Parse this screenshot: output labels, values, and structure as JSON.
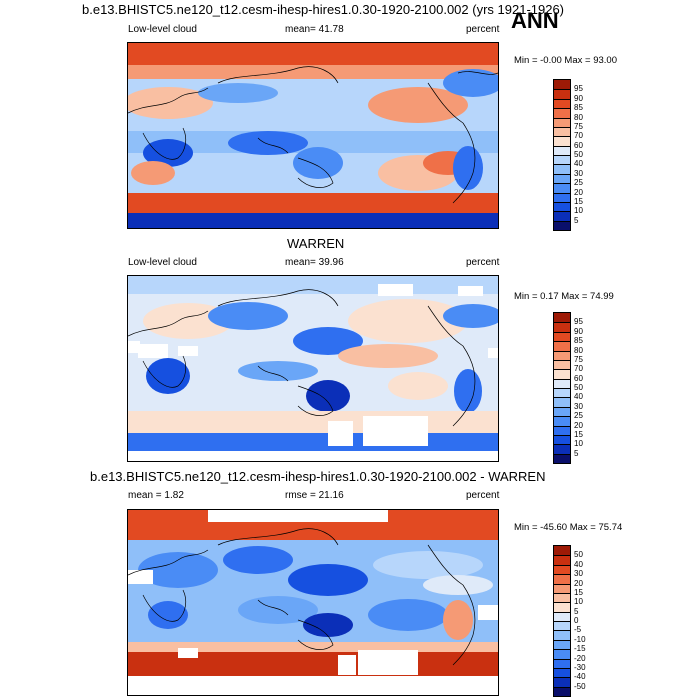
{
  "header": {
    "title": "b.e13.BHISTC5.ne120_t12.cesm-ihesp-hires1.0.30-1920-2100.002 (yrs 1921-1926)",
    "season": "ANN"
  },
  "panels": [
    {
      "id": "model",
      "title": "",
      "left_label": "Low-level cloud",
      "center_label": "mean=  41.78",
      "right_label": "percent",
      "minmax": "Min =  -0.00 Max =  93.00",
      "colorbar_ticks": [
        "95",
        "90",
        "85",
        "80",
        "75",
        "70",
        "60",
        "50",
        "40",
        "30",
        "25",
        "20",
        "15",
        "10",
        "5"
      ]
    },
    {
      "id": "obs",
      "title": "WARREN",
      "left_label": "Low-level cloud",
      "center_label": "mean=  39.96",
      "right_label": "percent",
      "minmax": "Min =   0.17 Max =  74.99",
      "colorbar_ticks": [
        "95",
        "90",
        "85",
        "80",
        "75",
        "70",
        "60",
        "50",
        "40",
        "30",
        "25",
        "20",
        "15",
        "10",
        "5"
      ]
    },
    {
      "id": "diff",
      "title": "b.e13.BHISTC5.ne120_t12.cesm-ihesp-hires1.0.30-1920-2100.002 - WARREN",
      "left_label": "mean =   1.82",
      "center_label": "rmse =  21.16",
      "right_label": "percent",
      "minmax": "Min = -45.60 Max =  75.74",
      "colorbar_ticks": [
        "50",
        "40",
        "30",
        "20",
        "15",
        "10",
        "5",
        "0",
        "-5",
        "-10",
        "-15",
        "-20",
        "-30",
        "-40",
        "-50"
      ]
    }
  ],
  "chart_data": [
    {
      "type": "heatmap",
      "title": "Low-level cloud",
      "units": "percent",
      "mean": 41.78,
      "min": -0.0,
      "max": 93.0,
      "levels": [
        5,
        10,
        15,
        20,
        25,
        30,
        40,
        50,
        60,
        70,
        75,
        80,
        85,
        90,
        95
      ],
      "colors": [
        "#0a0f6b",
        "#0b2fb8",
        "#1650e0",
        "#2f6ff0",
        "#4a8cf5",
        "#6aa6f7",
        "#8fbff9",
        "#b7d6fb",
        "#dfeaf9",
        "#fbe1d0",
        "#f9bfa2",
        "#f59a75",
        "#ef7048",
        "#e24a22",
        "#c93010",
        "#9e1a06"
      ]
    },
    {
      "type": "heatmap",
      "title": "Low-level cloud",
      "units": "percent",
      "mean": 39.96,
      "min": 0.17,
      "max": 74.99,
      "levels": [
        5,
        10,
        15,
        20,
        25,
        30,
        40,
        50,
        60,
        70,
        75,
        80,
        85,
        90,
        95
      ],
      "colors": [
        "#0a0f6b",
        "#0b2fb8",
        "#1650e0",
        "#2f6ff0",
        "#4a8cf5",
        "#6aa6f7",
        "#8fbff9",
        "#b7d6fb",
        "#dfeaf9",
        "#fbe1d0",
        "#f9bfa2",
        "#f59a75",
        "#ef7048",
        "#e24a22",
        "#c93010",
        "#9e1a06"
      ]
    },
    {
      "type": "heatmap",
      "title": "b.e13.BHISTC5.ne120_t12.cesm-ihesp-hires1.0.30-1920-2100.002 - WARREN",
      "units": "percent",
      "mean": 1.82,
      "rmse": 21.16,
      "min": -45.6,
      "max": 75.74,
      "levels": [
        -50,
        -40,
        -30,
        -20,
        -15,
        -10,
        -5,
        0,
        5,
        10,
        15,
        20,
        30,
        40,
        50
      ],
      "colors": [
        "#0a0f6b",
        "#0b2fb8",
        "#1650e0",
        "#2f6ff0",
        "#4a8cf5",
        "#6aa6f7",
        "#8fbff9",
        "#b7d6fb",
        "#dfeaf9",
        "#fbe1d0",
        "#f9bfa2",
        "#f59a75",
        "#ef7048",
        "#e24a22",
        "#c93010",
        "#9e1a06"
      ]
    }
  ]
}
